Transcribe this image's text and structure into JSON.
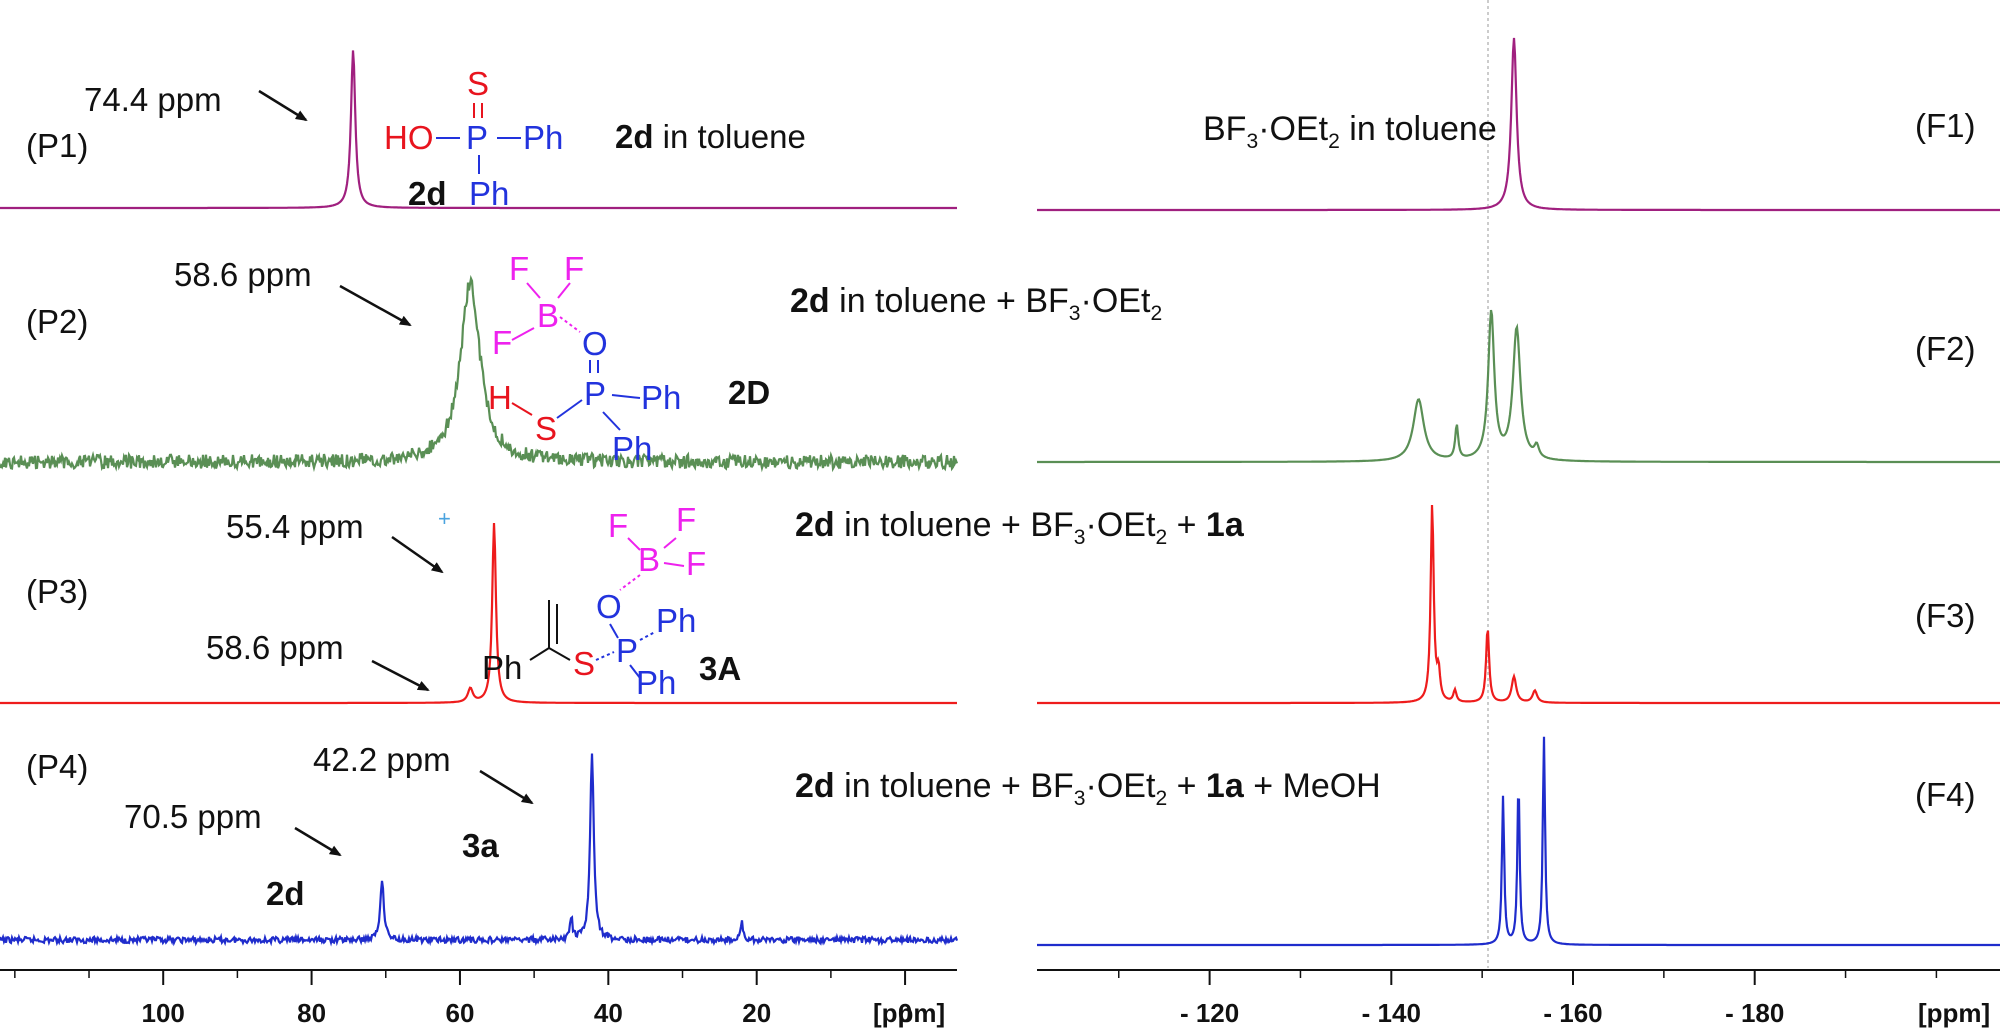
{
  "colors": {
    "P1": "#a0207f",
    "P2": "#5a8f55",
    "P3": "#ee1c1c",
    "P4": "#1f2ccc",
    "O": "#e8141e",
    "P": "#2233dd",
    "B": "#ee22ee",
    "black": "#111111"
  },
  "chart_data": [
    {
      "type": "line",
      "nucleus_axis": {
        "unit": "[ppm]",
        "ticks": [
          100,
          80,
          60,
          40,
          20,
          0
        ],
        "xlim": [
          122,
          -7
        ],
        "reversed": true
      },
      "series": [
        {
          "name": "(P1)",
          "color": "#a0207f",
          "baseline": 208,
          "peaks": [
            {
              "ppm": 74.4,
              "height": 158,
              "width": 0.35
            }
          ],
          "labels": [
            {
              "text": "74.4 ppm",
              "ppm": 74.4
            }
          ],
          "compound": "2d",
          "description_bold": "2d",
          "description_rest": " in toluene"
        },
        {
          "name": "(P2)",
          "color": "#5a8f55",
          "baseline": 462,
          "noise": 7,
          "peaks": [
            {
              "ppm": 58.6,
              "height": 180,
              "width": 1.6
            }
          ],
          "labels": [
            {
              "text": "58.6 ppm",
              "ppm": 58.6
            }
          ],
          "compound": "2D"
        },
        {
          "name": "(P3)",
          "color": "#ee1c1c",
          "baseline": 703,
          "peaks": [
            {
              "ppm": 55.4,
              "height": 180,
              "width": 0.3
            },
            {
              "ppm": 58.6,
              "height": 14,
              "width": 0.4
            }
          ],
          "labels": [
            {
              "text": "55.4 ppm",
              "ppm": 55.4
            },
            {
              "text": "58.6 ppm",
              "ppm": 58.6
            }
          ],
          "compound": "3A"
        },
        {
          "name": "(P4)",
          "color": "#1f2ccc",
          "baseline": 940,
          "noise": 3,
          "peaks": [
            {
              "ppm": 70.5,
              "height": 60,
              "width": 0.3
            },
            {
              "ppm": 42.2,
              "height": 185,
              "width": 0.3
            },
            {
              "ppm": 45.0,
              "height": 22,
              "width": 0.2
            },
            {
              "ppm": 22.0,
              "height": 18,
              "width": 0.2
            }
          ],
          "labels": [
            {
              "text": "70.5 ppm",
              "ppm": 70.5
            },
            {
              "text": "42.2 ppm",
              "ppm": 42.2
            }
          ],
          "peak_assignments": [
            {
              "text": "2d",
              "ppm": 70.5
            },
            {
              "text": "3a",
              "ppm": 42.2
            }
          ]
        }
      ]
    },
    {
      "type": "line",
      "nucleus_axis": {
        "unit": "[ppm]",
        "ticks": [
          -120,
          -140,
          -160,
          -180
        ],
        "xlim": [
          -101,
          -207
        ],
        "reversed": true
      },
      "reference_line_ppm": -147.5,
      "series": [
        {
          "name": "(F1)",
          "color": "#a0207f",
          "baseline": 210,
          "peaks": [
            {
              "ppm": -153.5,
              "height": 172,
              "width": 0.35
            }
          ]
        },
        {
          "name": "(F2)",
          "color": "#5a8f55",
          "baseline": 462,
          "peaks": [
            {
              "ppm": -143.0,
              "height": 62,
              "width": 0.7
            },
            {
              "ppm": -147.2,
              "height": 34,
              "width": 0.2
            },
            {
              "ppm": -151.0,
              "height": 148,
              "width": 0.4
            },
            {
              "ppm": -153.8,
              "height": 132,
              "width": 0.5
            },
            {
              "ppm": -156.0,
              "height": 12,
              "width": 0.3
            }
          ]
        },
        {
          "name": "(F3)",
          "color": "#ee1c1c",
          "baseline": 703,
          "peaks": [
            {
              "ppm": -144.5,
              "height": 198,
              "width": 0.2
            },
            {
              "ppm": -145.2,
              "height": 28,
              "width": 0.2
            },
            {
              "ppm": -147.0,
              "height": 12,
              "width": 0.2
            },
            {
              "ppm": -150.6,
              "height": 75,
              "width": 0.2
            },
            {
              "ppm": -153.5,
              "height": 26,
              "width": 0.3
            },
            {
              "ppm": -155.8,
              "height": 12,
              "width": 0.3
            }
          ]
        },
        {
          "name": "(F4)",
          "color": "#1f2ccc",
          "baseline": 945,
          "peaks": [
            {
              "ppm": -152.3,
              "height": 148,
              "width": 0.15
            },
            {
              "ppm": -154.0,
              "height": 163,
              "width": 0.15
            },
            {
              "ppm": -156.8,
              "height": 208,
              "width": 0.15
            }
          ]
        }
      ]
    }
  ],
  "headers": {
    "F1": {
      "pre": "BF",
      "sub1": "3",
      "mid": "·OEt",
      "sub2": "2",
      "post": " in toluene"
    },
    "F2": {
      "bold": "2d",
      "text": " in toluene +  BF",
      "sub1": "3",
      "mid": "·OEt",
      "sub2": "2"
    },
    "F3": {
      "bold": "2d",
      "text": "  in toluene  + BF",
      "sub1": "3",
      "mid": "·OEt",
      "sub2": "2",
      "post": " + ",
      "bold2": "1a"
    },
    "F4": {
      "bold": "2d",
      "text": "  in toluene  + BF",
      "sub1": "3",
      "mid": "·OEt",
      "sub2": "2",
      "post": " + ",
      "bold2": "1a",
      "post2": " + MeOH"
    }
  },
  "structures": {
    "s2d": {
      "S": "S",
      "HO": "HO",
      "P": "P",
      "Ph1": "Ph",
      "Ph2": "Ph",
      "name": "2d",
      "dash": "–"
    },
    "s2D": {
      "F1": "F",
      "F2": "F",
      "F3": "F",
      "B": "B",
      "O": "O",
      "H": "H",
      "S": "S",
      "P": "P",
      "Ph1": "Ph",
      "Ph2": "Ph",
      "name": "2D"
    },
    "s3A": {
      "F1": "F",
      "F2": "F",
      "F3": "F",
      "B": "B",
      "O": "O",
      "Ph0": "Ph",
      "S": "S",
      "P": "P",
      "Ph1": "Ph",
      "Ph2": "Ph",
      "name": "3A"
    }
  },
  "plus_marker": "+"
}
